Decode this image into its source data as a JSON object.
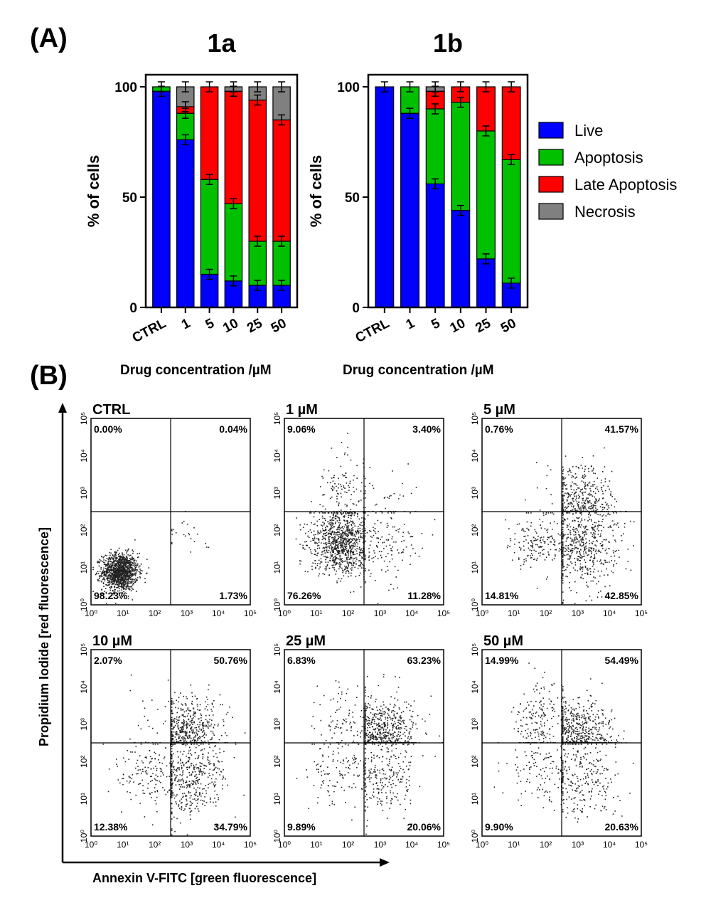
{
  "panel_a_label": "(A)",
  "panel_b_label": "(B)",
  "colors": {
    "live": "#0000ff",
    "apoptosis": "#00c000",
    "late": "#ff0000",
    "necrosis": "#808080"
  },
  "chart_data": [
    {
      "type": "bar",
      "stacked": true,
      "title": "1a",
      "xlabel": "Drug concentration /µM",
      "ylabel": "% of cells",
      "ylim": [
        0,
        100
      ],
      "yticks": [
        0,
        50,
        100
      ],
      "categories": [
        "CTRL",
        "1",
        "5",
        "10",
        "25",
        "50"
      ],
      "series": [
        {
          "name": "Live",
          "values": [
            98,
            76,
            15,
            12,
            10,
            10
          ]
        },
        {
          "name": "Apoptosis",
          "values": [
            2,
            12,
            43,
            35,
            20,
            20
          ]
        },
        {
          "name": "Late Apoptosis",
          "values": [
            0,
            3,
            42,
            51,
            64,
            55
          ]
        },
        {
          "name": "Necrosis",
          "values": [
            0,
            9,
            0,
            2,
            6,
            15
          ]
        }
      ]
    },
    {
      "type": "bar",
      "stacked": true,
      "title": "1b",
      "xlabel": "Drug concentration /µM",
      "ylabel": "% of cells",
      "ylim": [
        0,
        100
      ],
      "yticks": [
        0,
        50,
        100
      ],
      "categories": [
        "CTRL",
        "1",
        "5",
        "10",
        "25",
        "50"
      ],
      "series": [
        {
          "name": "Live",
          "values": [
            100,
            88,
            56,
            44,
            22,
            11
          ]
        },
        {
          "name": "Apoptosis",
          "values": [
            0,
            12,
            34,
            49,
            58,
            56
          ]
        },
        {
          "name": "Late Apoptosis",
          "values": [
            0,
            0,
            8,
            7,
            20,
            33
          ]
        },
        {
          "name": "Necrosis",
          "values": [
            0,
            0,
            2,
            0,
            0,
            0
          ]
        }
      ]
    },
    {
      "type": "scatter",
      "subtype": "flow_cytometry_quadrants",
      "xlabel": "Annexin V-FITC [green fluorescence]",
      "ylabel": "Propidium Iodide [red fluorescence]",
      "axis_scale": "log10",
      "axis_range": [
        0,
        5
      ],
      "tick_labels": [
        "10⁰",
        "10¹",
        "10²",
        "10³",
        "10⁴",
        "10⁵"
      ],
      "gate": [
        2.5,
        2.5
      ],
      "plots": [
        {
          "title": "CTRL",
          "ul": "0.00%",
          "ur": "0.04%",
          "ll": "98.23%",
          "lr": "1.73%"
        },
        {
          "title": "1 µM",
          "ul": "9.06%",
          "ur": "3.40%",
          "ll": "76.26%",
          "lr": "11.28%"
        },
        {
          "title": "5 µM",
          "ul": "0.76%",
          "ur": "41.57%",
          "ll": "14.81%",
          "lr": "42.85%"
        },
        {
          "title": "10 µM",
          "ul": "2.07%",
          "ur": "50.76%",
          "ll": "12.38%",
          "lr": "34.79%"
        },
        {
          "title": "25 µM",
          "ul": "6.83%",
          "ur": "63.23%",
          "ll": "9.89%",
          "lr": "20.06%"
        },
        {
          "title": "50 µM",
          "ul": "14.99%",
          "ur": "54.49%",
          "ll": "9.90%",
          "lr": "20.63%"
        }
      ]
    }
  ]
}
